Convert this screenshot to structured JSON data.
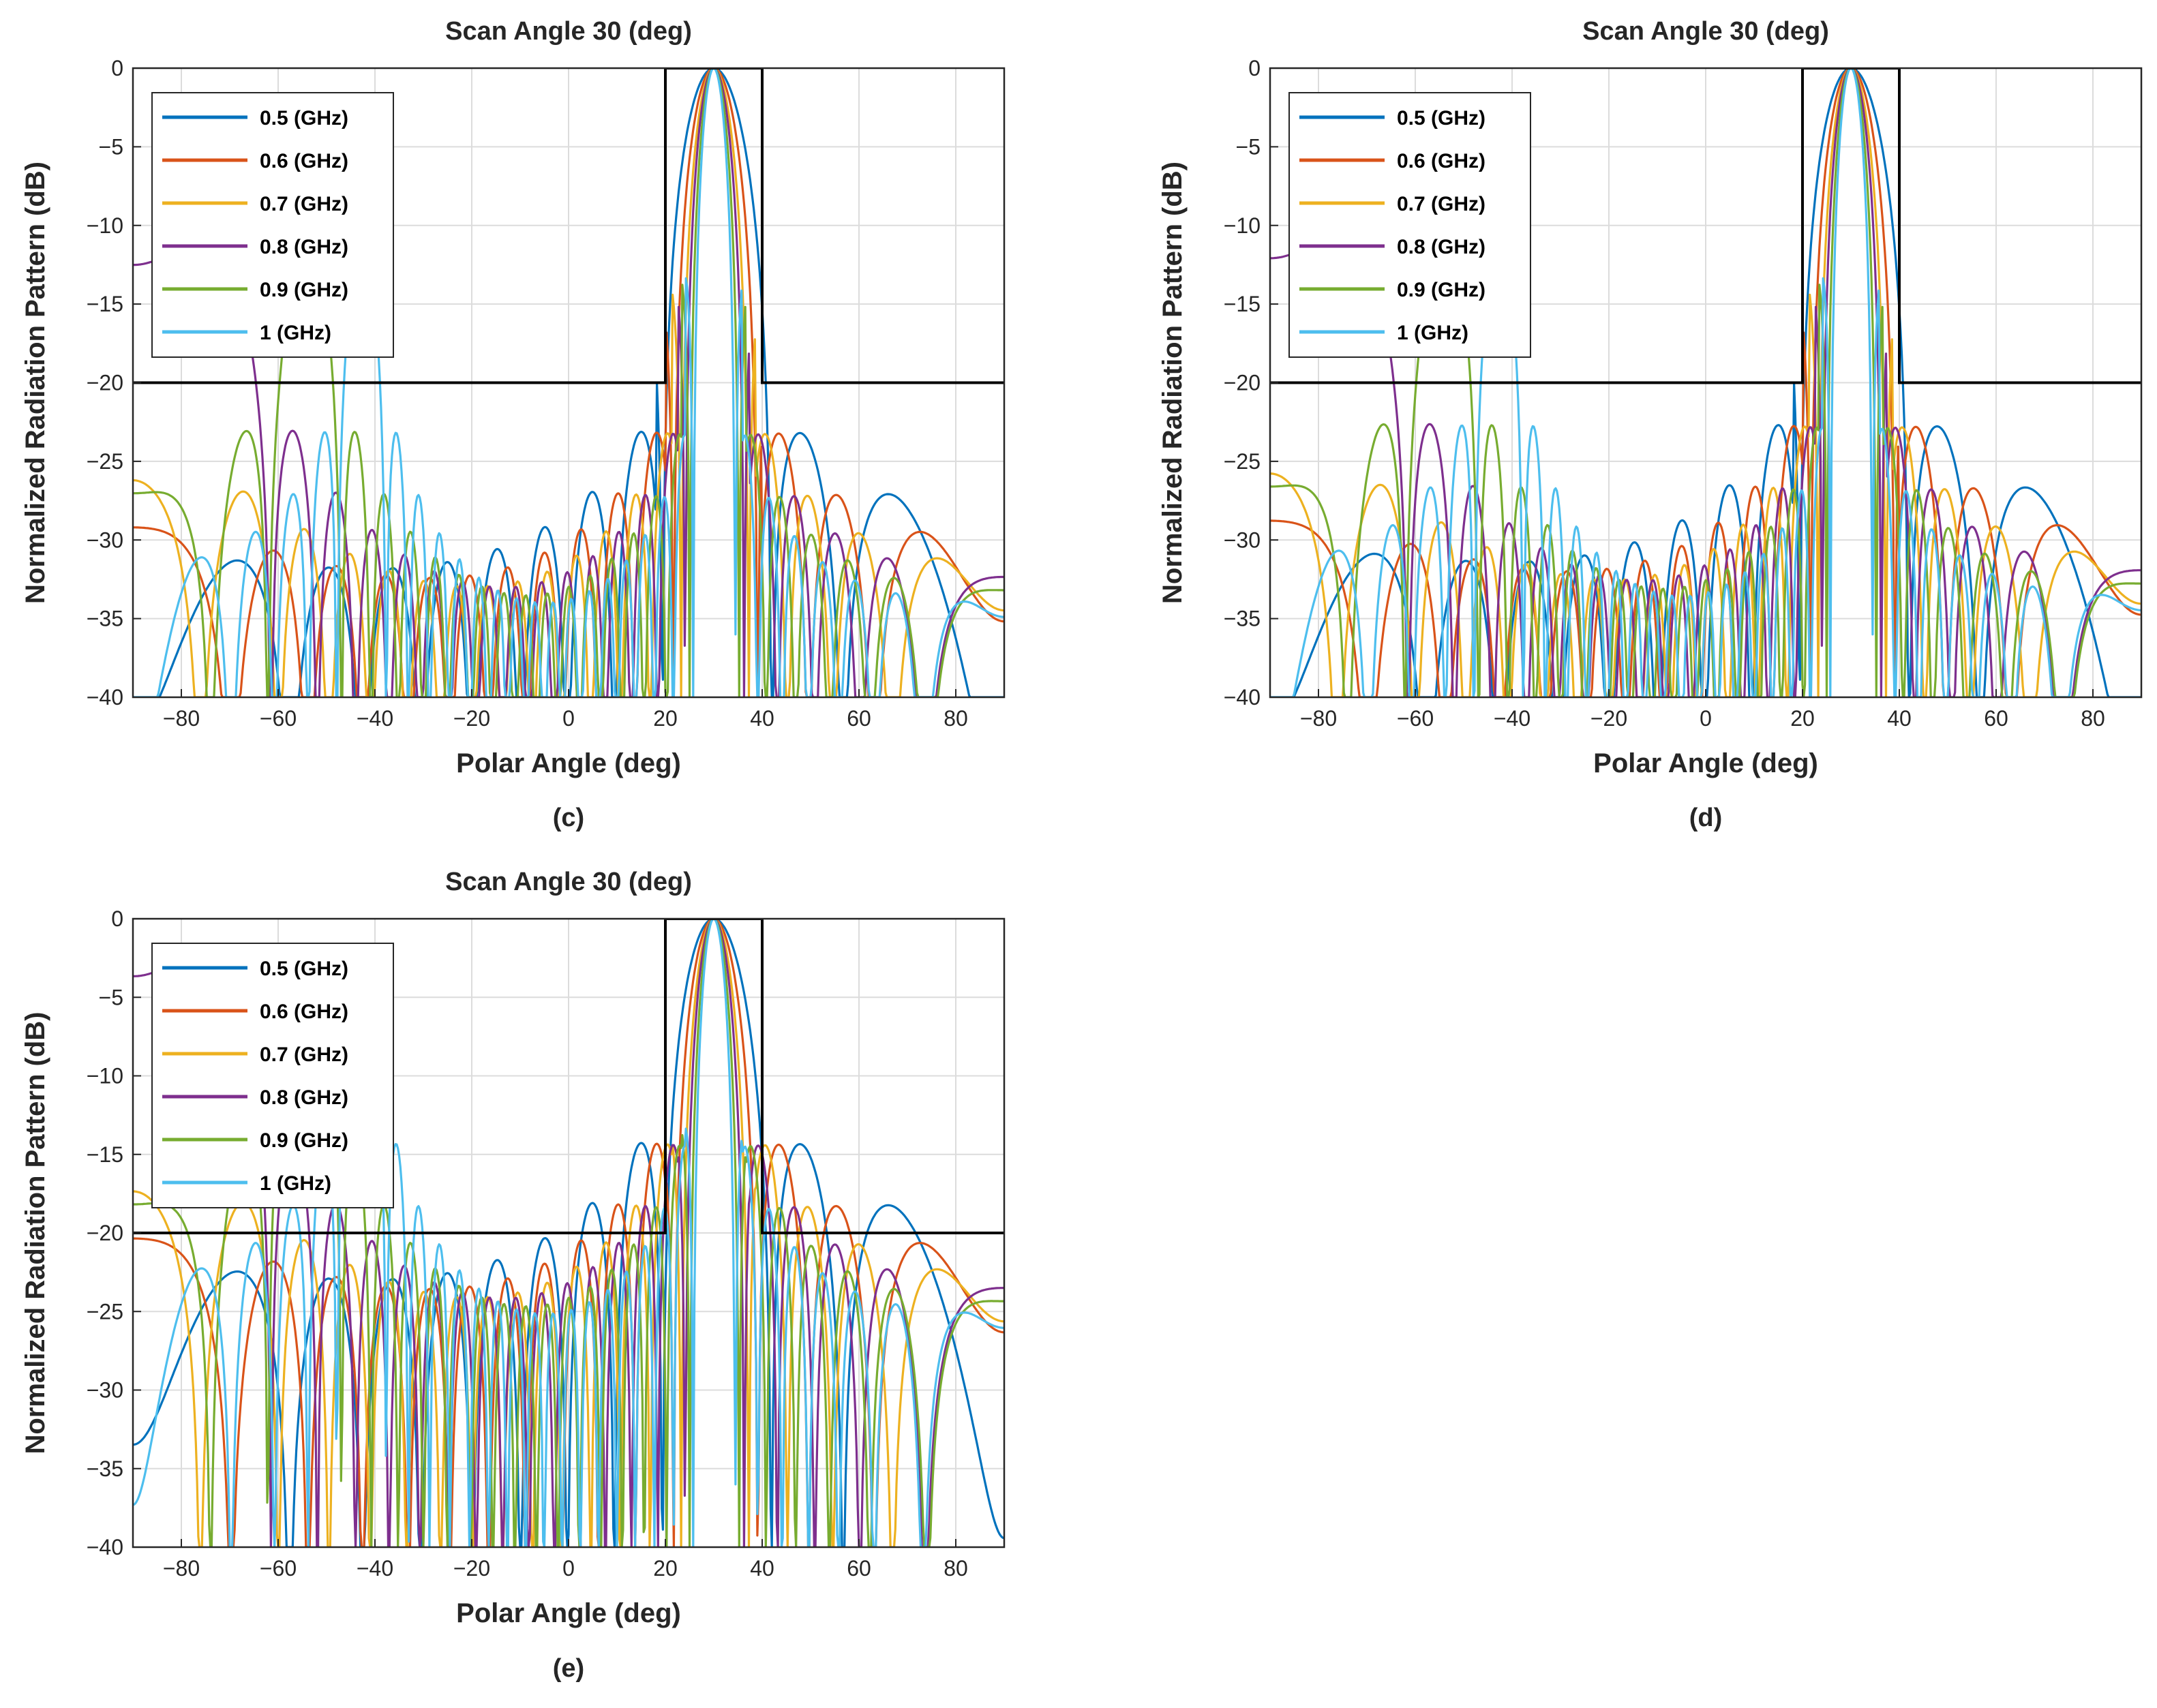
{
  "figure": {
    "panels_description": "Three radiation pattern plots"
  },
  "chart_data": [
    {
      "type": "line",
      "panel_label": "(c)",
      "title": "Scan Angle 30 (deg)",
      "xlabel": "Polar Angle (deg)",
      "ylabel": "Normalized Radiation Pattern (dB)",
      "xlim": [
        -90,
        90
      ],
      "ylim": [
        -40,
        0
      ],
      "xticks": [
        -80,
        -60,
        -40,
        -20,
        0,
        20,
        40,
        60,
        80
      ],
      "xtick_labels": [
        "−80",
        "−60",
        "−40",
        "−20",
        "0",
        "20",
        "40",
        "60",
        "80"
      ],
      "yticks": [
        0,
        -5,
        -10,
        -15,
        -20,
        -25,
        -30,
        -35,
        -40
      ],
      "ytick_labels": [
        "0",
        "−5",
        "−10",
        "−15",
        "−20",
        "−25",
        "−30",
        "−35",
        "−40"
      ],
      "grid": true,
      "legend_position": "top-left",
      "scan_angle": 30,
      "sidelobe_level_db": -22.5,
      "mask": {
        "label": "mask",
        "x": [
          -90,
          20,
          20,
          40,
          40,
          90
        ],
        "y": [
          -20,
          -20,
          0,
          0,
          -20,
          -20
        ],
        "color": "#000000"
      },
      "series": [
        {
          "name": "0.5 (GHz)",
          "freq_ghz": 0.5,
          "color": "#0072BD"
        },
        {
          "name": "0.6 (GHz)",
          "freq_ghz": 0.6,
          "color": "#D95319"
        },
        {
          "name": "0.7 (GHz)",
          "freq_ghz": 0.7,
          "color": "#EDB120"
        },
        {
          "name": "0.8 (GHz)",
          "freq_ghz": 0.8,
          "color": "#7E2F8E"
        },
        {
          "name": "0.9 (GHz)",
          "freq_ghz": 0.9,
          "color": "#77AC30"
        },
        {
          "name": "1 (GHz)",
          "freq_ghz": 1.0,
          "color": "#4DBEEE"
        }
      ]
    },
    {
      "type": "line",
      "panel_label": "(d)",
      "title": "Scan Angle 30 (deg)",
      "xlabel": "Polar Angle (deg)",
      "ylabel": "Normalized Radiation Pattern (dB)",
      "xlim": [
        -90,
        90
      ],
      "ylim": [
        -40,
        0
      ],
      "xticks": [
        -80,
        -60,
        -40,
        -20,
        0,
        20,
        40,
        60,
        80
      ],
      "xtick_labels": [
        "−80",
        "−60",
        "−40",
        "−20",
        "0",
        "20",
        "40",
        "60",
        "80"
      ],
      "yticks": [
        0,
        -5,
        -10,
        -15,
        -20,
        -25,
        -30,
        -35,
        -40
      ],
      "ytick_labels": [
        "0",
        "−5",
        "−10",
        "−15",
        "−20",
        "−25",
        "−30",
        "−35",
        "−40"
      ],
      "grid": true,
      "legend_position": "top-left",
      "scan_angle": 30,
      "sidelobe_level_db": -22,
      "mask": {
        "label": "mask",
        "x": [
          -90,
          20,
          20,
          40,
          40,
          90
        ],
        "y": [
          -20,
          -20,
          0,
          0,
          -20,
          -20
        ],
        "color": "#000000"
      },
      "series": [
        {
          "name": "0.5 (GHz)",
          "freq_ghz": 0.5,
          "color": "#0072BD"
        },
        {
          "name": "0.6 (GHz)",
          "freq_ghz": 0.6,
          "color": "#D95319"
        },
        {
          "name": "0.7 (GHz)",
          "freq_ghz": 0.7,
          "color": "#EDB120"
        },
        {
          "name": "0.8 (GHz)",
          "freq_ghz": 0.8,
          "color": "#7E2F8E"
        },
        {
          "name": "0.9 (GHz)",
          "freq_ghz": 0.9,
          "color": "#77AC30"
        },
        {
          "name": "1 (GHz)",
          "freq_ghz": 1.0,
          "color": "#4DBEEE"
        }
      ]
    },
    {
      "type": "line",
      "panel_label": "(e)",
      "title": "Scan Angle 30 (deg)",
      "xlabel": "Polar Angle (deg)",
      "ylabel": "Normalized Radiation Pattern (dB)",
      "xlim": [
        -90,
        90
      ],
      "ylim": [
        -40,
        0
      ],
      "xticks": [
        -80,
        -60,
        -40,
        -20,
        0,
        20,
        40,
        60,
        80
      ],
      "xtick_labels": [
        "−80",
        "−60",
        "−40",
        "−20",
        "0",
        "20",
        "40",
        "60",
        "80"
      ],
      "yticks": [
        0,
        -5,
        -10,
        -15,
        -20,
        -25,
        -30,
        -35,
        -40
      ],
      "ytick_labels": [
        "0",
        "−5",
        "−10",
        "−15",
        "−20",
        "−25",
        "−30",
        "−35",
        "−40"
      ],
      "grid": true,
      "legend_position": "top-left",
      "scan_angle": 30,
      "sidelobe_level_db": -13.5,
      "mask": {
        "label": "mask",
        "x": [
          -90,
          20,
          20,
          40,
          40,
          90
        ],
        "y": [
          -20,
          -20,
          0,
          0,
          -20,
          -20
        ],
        "color": "#000000"
      },
      "series": [
        {
          "name": "0.5 (GHz)",
          "freq_ghz": 0.5,
          "color": "#0072BD"
        },
        {
          "name": "0.6 (GHz)",
          "freq_ghz": 0.6,
          "color": "#D95319"
        },
        {
          "name": "0.7 (GHz)",
          "freq_ghz": 0.7,
          "color": "#EDB120"
        },
        {
          "name": "0.8 (GHz)",
          "freq_ghz": 0.8,
          "color": "#7E2F8E"
        },
        {
          "name": "0.9 (GHz)",
          "freq_ghz": 0.9,
          "color": "#77AC30"
        },
        {
          "name": "1 (GHz)",
          "freq_ghz": 1.0,
          "color": "#4DBEEE"
        }
      ]
    }
  ]
}
